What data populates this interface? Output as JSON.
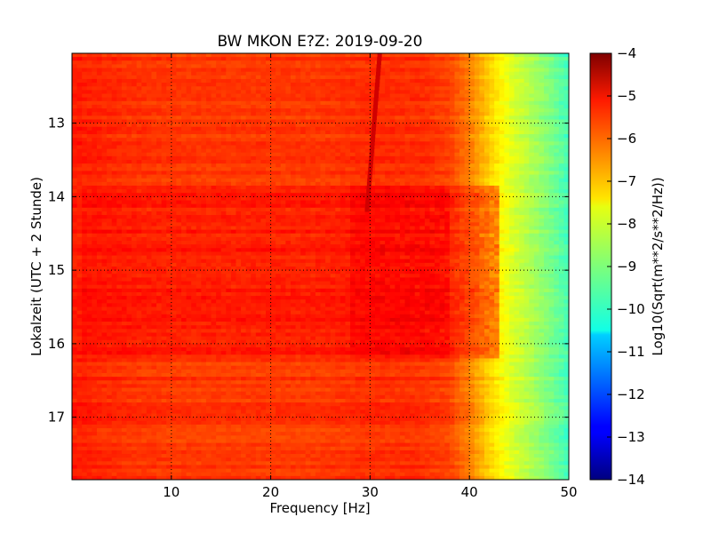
{
  "chart_data": {
    "type": "heatmap",
    "title": "BW MKON E?Z: 2019-09-20",
    "xlabel": "Frequency [Hz]",
    "ylabel": "Lokalzeit (UTC + 2 Stunde)",
    "xlim": [
      0,
      50
    ],
    "ylim": [
      12.05,
      17.85
    ],
    "y_inverted": true,
    "x_ticks": [
      10,
      20,
      30,
      40,
      50
    ],
    "y_ticks": [
      13,
      14,
      15,
      16,
      17
    ],
    "grid": true,
    "colorscale": "jet",
    "colorbar": {
      "label": "Log10(Sqrt(m**2/s**2/Hz))",
      "min": -14,
      "max": -4,
      "ticks": [
        -4,
        -5,
        -6,
        -7,
        -8,
        -9,
        -10,
        -11,
        -12,
        -13,
        -14
      ]
    },
    "spectrum_profile": {
      "frequency_hz": [
        0,
        5,
        10,
        15,
        20,
        25,
        30,
        35,
        38,
        40,
        42,
        44,
        46,
        48,
        50
      ],
      "log10_psd": [
        -5.5,
        -5.7,
        -5.8,
        -5.8,
        -5.8,
        -5.8,
        -5.7,
        -5.7,
        -5.9,
        -6.5,
        -7.3,
        -8.0,
        -8.5,
        -9.0,
        -9.6
      ]
    },
    "elevated_band_hours": [
      13.85,
      16.2
    ],
    "elevated_band_peak_log10_psd": -5.2,
    "narrowband_line_hz": 31
  }
}
